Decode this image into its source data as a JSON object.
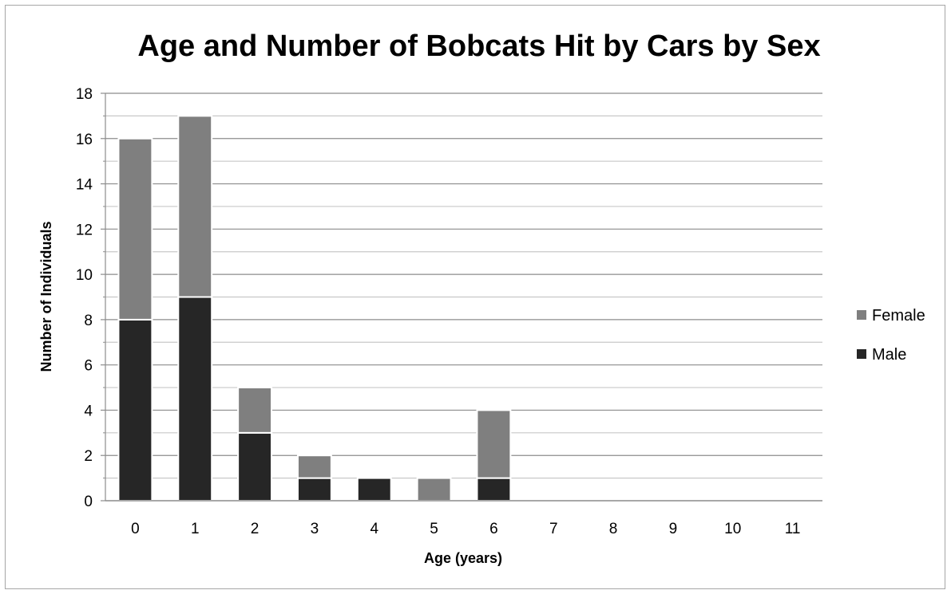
{
  "chart_data": {
    "type": "bar",
    "stacked": true,
    "title": "Age and Number of Bobcats Hit by Cars by Sex",
    "xlabel": "Age (years)",
    "ylabel": "Number of Individuals",
    "categories": [
      "0",
      "1",
      "2",
      "3",
      "4",
      "5",
      "6",
      "7",
      "8",
      "9",
      "10",
      "11"
    ],
    "series": [
      {
        "name": "Male",
        "color": "#262626",
        "values": [
          8,
          9,
          3,
          1,
          1,
          0,
          1,
          0,
          0,
          0,
          0,
          0
        ]
      },
      {
        "name": "Female",
        "color": "#7f7f7f",
        "values": [
          8,
          8,
          2,
          1,
          0,
          1,
          3,
          0,
          0,
          0,
          0,
          0
        ]
      }
    ],
    "ylim": [
      0,
      18
    ],
    "y_major_ticks": [
      0,
      2,
      4,
      6,
      8,
      10,
      12,
      14,
      16,
      18
    ],
    "y_minor_step": 1,
    "grid": true,
    "legend_position": "right",
    "legend_order": [
      "Female",
      "Male"
    ]
  }
}
